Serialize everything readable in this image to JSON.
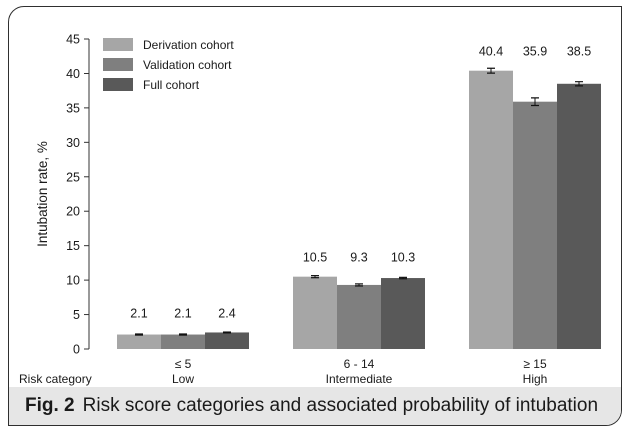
{
  "chart_data": {
    "type": "bar",
    "ylabel": "Intubation rate, %",
    "ylim": [
      0,
      45
    ],
    "yticks": [
      0,
      5,
      10,
      15,
      20,
      25,
      30,
      35,
      40,
      45
    ],
    "x_axis_label": "Risk category",
    "categories": [
      {
        "range": "≤ 5",
        "name": "Low"
      },
      {
        "range": "6 - 14",
        "name": "Intermediate"
      },
      {
        "range": "≥ 15",
        "name": "High"
      }
    ],
    "series": [
      {
        "name": "Derivation cohort",
        "color": "#a6a6a6",
        "values": [
          2.1,
          10.5,
          40.4
        ],
        "errors": [
          0.08,
          0.15,
          0.35
        ]
      },
      {
        "name": "Validation cohort",
        "color": "#7f7f7f",
        "values": [
          2.1,
          9.3,
          35.9
        ],
        "errors": [
          0.08,
          0.15,
          0.55
        ]
      },
      {
        "name": "Full cohort",
        "color": "#595959",
        "values": [
          2.4,
          10.3,
          38.5
        ],
        "errors": [
          0.06,
          0.1,
          0.3
        ]
      }
    ],
    "value_labels": [
      [
        "2.1",
        "2.1",
        "2.4"
      ],
      [
        "10.5",
        "9.3",
        "10.3"
      ],
      [
        "40.4",
        "35.9",
        "38.5"
      ]
    ],
    "legend": "top-left",
    "grid": false
  },
  "caption": {
    "fig_label": "Fig. 2",
    "text": "Risk score categories and associated probability of intubation"
  }
}
